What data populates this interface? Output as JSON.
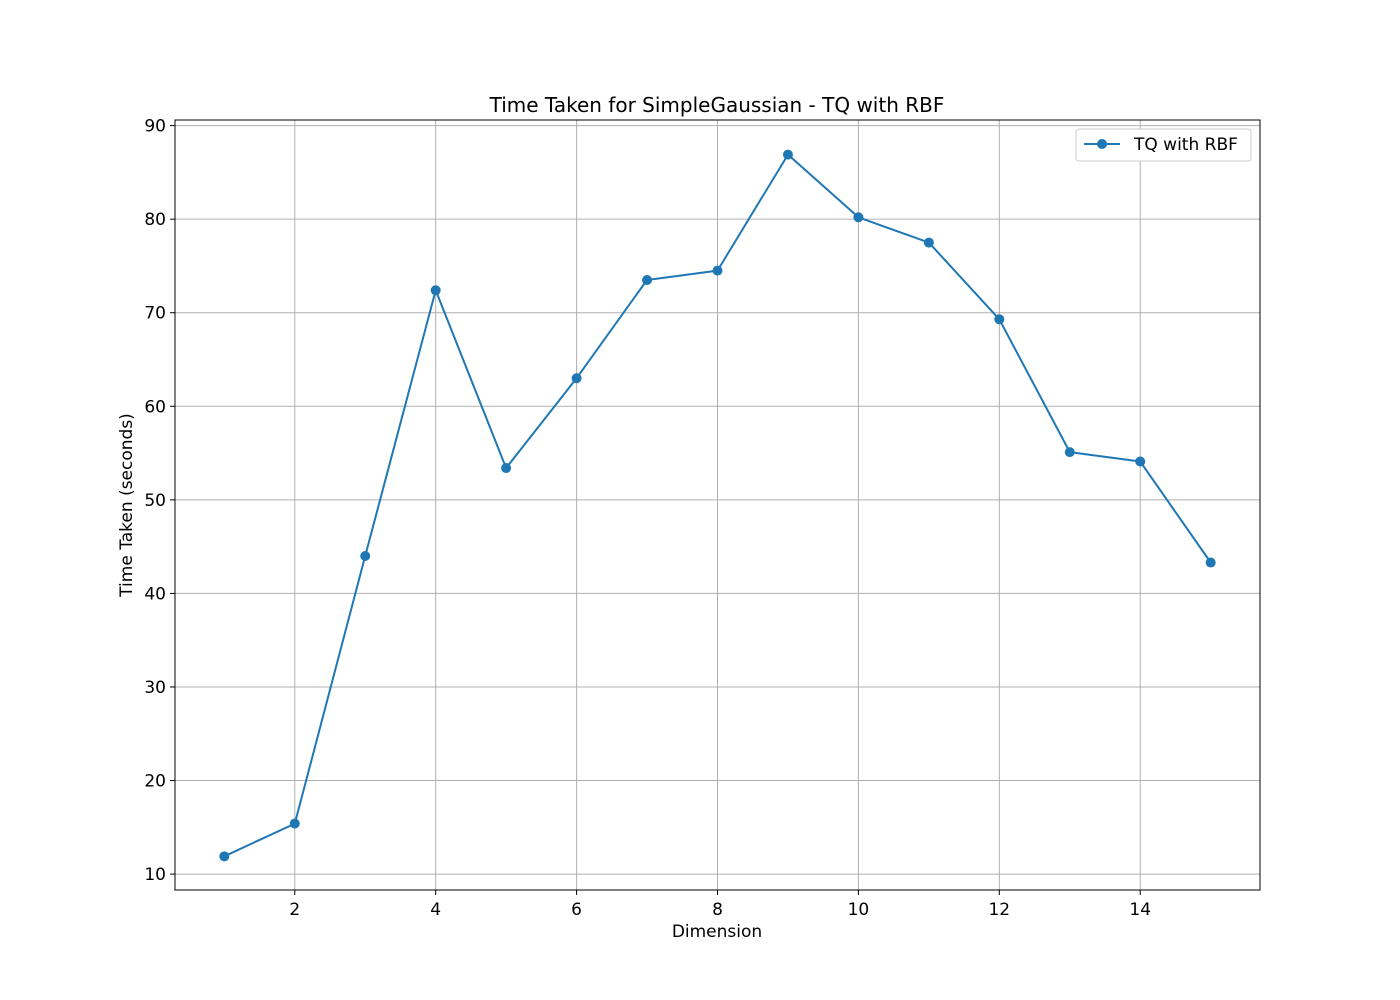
{
  "chart_data": {
    "type": "line",
    "title": "Time Taken for SimpleGaussian - TQ with RBF",
    "xlabel": "Dimension",
    "ylabel": "Time Taken (seconds)",
    "xlim": [
      0.3,
      15.7
    ],
    "ylim": [
      8.3,
      90.6
    ],
    "x_ticks": [
      2,
      4,
      6,
      8,
      10,
      12,
      14
    ],
    "y_ticks": [
      10,
      20,
      30,
      40,
      50,
      60,
      70,
      80,
      90
    ],
    "x_tick_labels": [
      "2",
      "4",
      "6",
      "8",
      "10",
      "12",
      "14"
    ],
    "y_tick_labels": [
      "10",
      "20",
      "30",
      "40",
      "50",
      "60",
      "70",
      "80",
      "90"
    ],
    "grid": true,
    "legend_position": "top-right",
    "series": [
      {
        "name": "TQ with RBF",
        "color": "#1f77b4",
        "marker": "circle",
        "x": [
          1,
          2,
          3,
          4,
          5,
          6,
          7,
          8,
          9,
          10,
          11,
          12,
          13,
          14,
          15
        ],
        "y": [
          11.9,
          15.4,
          44.0,
          72.4,
          53.4,
          63.0,
          73.5,
          74.5,
          86.9,
          80.2,
          77.5,
          69.3,
          55.1,
          54.1,
          43.3
        ]
      }
    ]
  }
}
